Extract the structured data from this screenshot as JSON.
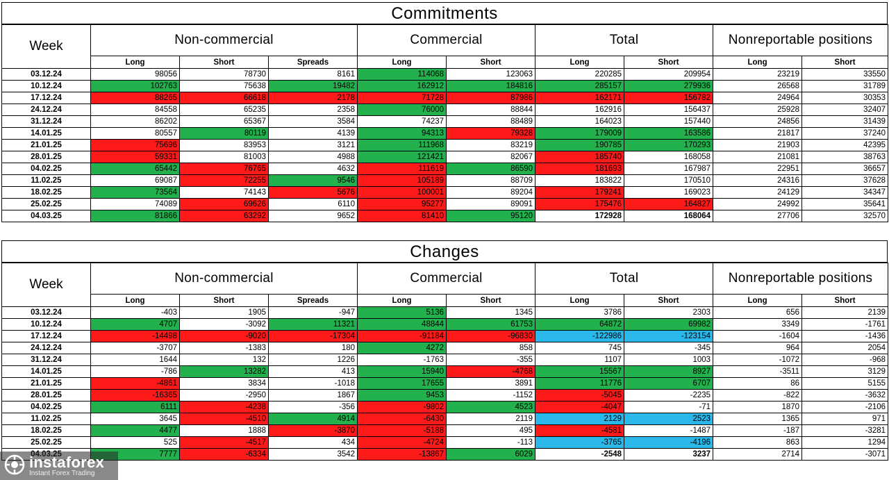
{
  "commitments": {
    "title": "Commitments",
    "week_label": "Week",
    "groups": [
      "Non-commercial",
      "Commercial",
      "Total",
      "Nonreportable positions"
    ],
    "subheaders": [
      "Long",
      "Short",
      "Spreads",
      "Long",
      "Short",
      "Long",
      "Short",
      "Long",
      "Short"
    ],
    "rows": [
      {
        "week": "03.12.24",
        "cells": [
          {
            "v": "98056",
            "c": ""
          },
          {
            "v": "78730",
            "c": ""
          },
          {
            "v": "8161",
            "c": ""
          },
          {
            "v": "114068",
            "c": "g"
          },
          {
            "v": "123063",
            "c": ""
          },
          {
            "v": "220285",
            "c": ""
          },
          {
            "v": "209954",
            "c": ""
          },
          {
            "v": "23219",
            "c": ""
          },
          {
            "v": "33550",
            "c": ""
          }
        ]
      },
      {
        "week": "10.12.24",
        "cells": [
          {
            "v": "102763",
            "c": "g"
          },
          {
            "v": "75638",
            "c": ""
          },
          {
            "v": "19482",
            "c": "g"
          },
          {
            "v": "162912",
            "c": "g"
          },
          {
            "v": "184816",
            "c": "g"
          },
          {
            "v": "285157",
            "c": "g"
          },
          {
            "v": "279936",
            "c": "g"
          },
          {
            "v": "26568",
            "c": ""
          },
          {
            "v": "31789",
            "c": ""
          }
        ]
      },
      {
        "week": "17.12.24",
        "cells": [
          {
            "v": "88265",
            "c": "r"
          },
          {
            "v": "66618",
            "c": "r"
          },
          {
            "v": "2178",
            "c": "r"
          },
          {
            "v": "71728",
            "c": "r"
          },
          {
            "v": "87986",
            "c": "r"
          },
          {
            "v": "162171",
            "c": "r"
          },
          {
            "v": "156782",
            "c": "r"
          },
          {
            "v": "24964",
            "c": ""
          },
          {
            "v": "30353",
            "c": ""
          }
        ]
      },
      {
        "week": "24.12.24",
        "cells": [
          {
            "v": "84558",
            "c": ""
          },
          {
            "v": "65235",
            "c": ""
          },
          {
            "v": "2358",
            "c": ""
          },
          {
            "v": "76000",
            "c": "g"
          },
          {
            "v": "88844",
            "c": ""
          },
          {
            "v": "162916",
            "c": ""
          },
          {
            "v": "156437",
            "c": ""
          },
          {
            "v": "25928",
            "c": ""
          },
          {
            "v": "32407",
            "c": ""
          }
        ]
      },
      {
        "week": "31.12.24",
        "cells": [
          {
            "v": "86202",
            "c": ""
          },
          {
            "v": "65367",
            "c": ""
          },
          {
            "v": "3584",
            "c": ""
          },
          {
            "v": "74237",
            "c": ""
          },
          {
            "v": "88489",
            "c": ""
          },
          {
            "v": "164023",
            "c": ""
          },
          {
            "v": "157440",
            "c": ""
          },
          {
            "v": "24856",
            "c": ""
          },
          {
            "v": "31439",
            "c": ""
          }
        ]
      },
      {
        "week": "14.01.25",
        "cells": [
          {
            "v": "80557",
            "c": ""
          },
          {
            "v": "80119",
            "c": "g"
          },
          {
            "v": "4139",
            "c": ""
          },
          {
            "v": "94313",
            "c": "g"
          },
          {
            "v": "79328",
            "c": "r"
          },
          {
            "v": "179009",
            "c": "g"
          },
          {
            "v": "163586",
            "c": "g"
          },
          {
            "v": "21817",
            "c": ""
          },
          {
            "v": "37240",
            "c": ""
          }
        ]
      },
      {
        "week": "21.01.25",
        "cells": [
          {
            "v": "75696",
            "c": "r"
          },
          {
            "v": "83953",
            "c": ""
          },
          {
            "v": "3121",
            "c": ""
          },
          {
            "v": "111968",
            "c": "g"
          },
          {
            "v": "83219",
            "c": ""
          },
          {
            "v": "190785",
            "c": "g"
          },
          {
            "v": "170293",
            "c": "g"
          },
          {
            "v": "21903",
            "c": ""
          },
          {
            "v": "42395",
            "c": ""
          }
        ]
      },
      {
        "week": "28.01.25",
        "cells": [
          {
            "v": "59331",
            "c": "r"
          },
          {
            "v": "81003",
            "c": ""
          },
          {
            "v": "4988",
            "c": ""
          },
          {
            "v": "121421",
            "c": "g"
          },
          {
            "v": "82067",
            "c": ""
          },
          {
            "v": "185740",
            "c": "r"
          },
          {
            "v": "168058",
            "c": ""
          },
          {
            "v": "21081",
            "c": ""
          },
          {
            "v": "38763",
            "c": ""
          }
        ]
      },
      {
        "week": "04.02.25",
        "cells": [
          {
            "v": "65442",
            "c": "g"
          },
          {
            "v": "76765",
            "c": "r"
          },
          {
            "v": "4632",
            "c": ""
          },
          {
            "v": "111619",
            "c": "r"
          },
          {
            "v": "86590",
            "c": "g"
          },
          {
            "v": "181693",
            "c": "r"
          },
          {
            "v": "167987",
            "c": ""
          },
          {
            "v": "22951",
            "c": ""
          },
          {
            "v": "36657",
            "c": ""
          }
        ]
      },
      {
        "week": "11.02.25",
        "cells": [
          {
            "v": "69087",
            "c": ""
          },
          {
            "v": "72255",
            "c": "r"
          },
          {
            "v": "9546",
            "c": "g"
          },
          {
            "v": "105189",
            "c": "r"
          },
          {
            "v": "88709",
            "c": ""
          },
          {
            "v": "183822",
            "c": ""
          },
          {
            "v": "170510",
            "c": ""
          },
          {
            "v": "24316",
            "c": ""
          },
          {
            "v": "37628",
            "c": ""
          }
        ]
      },
      {
        "week": "18.02.25",
        "cells": [
          {
            "v": "73564",
            "c": "g"
          },
          {
            "v": "74143",
            "c": ""
          },
          {
            "v": "5676",
            "c": "r"
          },
          {
            "v": "100001",
            "c": "r"
          },
          {
            "v": "89204",
            "c": ""
          },
          {
            "v": "179241",
            "c": "r"
          },
          {
            "v": "169023",
            "c": ""
          },
          {
            "v": "24129",
            "c": ""
          },
          {
            "v": "34347",
            "c": ""
          }
        ]
      },
      {
        "week": "25.02.25",
        "cells": [
          {
            "v": "74089",
            "c": ""
          },
          {
            "v": "69626",
            "c": "r"
          },
          {
            "v": "6110",
            "c": ""
          },
          {
            "v": "95277",
            "c": "r"
          },
          {
            "v": "89091",
            "c": ""
          },
          {
            "v": "175476",
            "c": "r"
          },
          {
            "v": "164827",
            "c": "r"
          },
          {
            "v": "24992",
            "c": ""
          },
          {
            "v": "35641",
            "c": ""
          }
        ]
      },
      {
        "week": "04.03.25",
        "cells": [
          {
            "v": "81866",
            "c": "g"
          },
          {
            "v": "63292",
            "c": "r"
          },
          {
            "v": "9652",
            "c": ""
          },
          {
            "v": "81410",
            "c": "r"
          },
          {
            "v": "95120",
            "c": "g"
          },
          {
            "v": "172928",
            "c": "",
            "b": true
          },
          {
            "v": "168064",
            "c": "",
            "b": true
          },
          {
            "v": "27706",
            "c": ""
          },
          {
            "v": "32570",
            "c": ""
          }
        ]
      }
    ]
  },
  "changes": {
    "title": "Changes",
    "week_label": "Week",
    "groups": [
      "Non-commercial",
      "Commercial",
      "Total",
      "Nonreportable positions"
    ],
    "subheaders": [
      "Long",
      "Short",
      "Spreads",
      "Long",
      "Short",
      "Long",
      "Short",
      "Long",
      "Short"
    ],
    "rows": [
      {
        "week": "03.12.24",
        "cells": [
          {
            "v": "-403",
            "c": ""
          },
          {
            "v": "1905",
            "c": ""
          },
          {
            "v": "-947",
            "c": ""
          },
          {
            "v": "5136",
            "c": "g"
          },
          {
            "v": "1345",
            "c": ""
          },
          {
            "v": "3786",
            "c": ""
          },
          {
            "v": "2303",
            "c": ""
          },
          {
            "v": "656",
            "c": ""
          },
          {
            "v": "2139",
            "c": ""
          }
        ]
      },
      {
        "week": "10.12.24",
        "cells": [
          {
            "v": "4707",
            "c": "g"
          },
          {
            "v": "-3092",
            "c": ""
          },
          {
            "v": "11321",
            "c": "g"
          },
          {
            "v": "48844",
            "c": "g"
          },
          {
            "v": "61753",
            "c": "g"
          },
          {
            "v": "64872",
            "c": "g"
          },
          {
            "v": "69982",
            "c": "g"
          },
          {
            "v": "3349",
            "c": ""
          },
          {
            "v": "-1761",
            "c": ""
          }
        ]
      },
      {
        "week": "17.12.24",
        "cells": [
          {
            "v": "-14498",
            "c": "r"
          },
          {
            "v": "-9020",
            "c": "r"
          },
          {
            "v": "-17304",
            "c": "r"
          },
          {
            "v": "-91184",
            "c": "r"
          },
          {
            "v": "-96830",
            "c": "r"
          },
          {
            "v": "-122986",
            "c": "b"
          },
          {
            "v": "-123154",
            "c": "b"
          },
          {
            "v": "-1604",
            "c": ""
          },
          {
            "v": "-1436",
            "c": ""
          }
        ]
      },
      {
        "week": "24.12.24",
        "cells": [
          {
            "v": "-3707",
            "c": ""
          },
          {
            "v": "-1383",
            "c": ""
          },
          {
            "v": "180",
            "c": ""
          },
          {
            "v": "4272",
            "c": "g"
          },
          {
            "v": "858",
            "c": ""
          },
          {
            "v": "745",
            "c": ""
          },
          {
            "v": "-345",
            "c": ""
          },
          {
            "v": "964",
            "c": ""
          },
          {
            "v": "2054",
            "c": ""
          }
        ]
      },
      {
        "week": "31.12.24",
        "cells": [
          {
            "v": "1644",
            "c": ""
          },
          {
            "v": "132",
            "c": ""
          },
          {
            "v": "1226",
            "c": ""
          },
          {
            "v": "-1763",
            "c": ""
          },
          {
            "v": "-355",
            "c": ""
          },
          {
            "v": "1107",
            "c": ""
          },
          {
            "v": "1003",
            "c": ""
          },
          {
            "v": "-1072",
            "c": ""
          },
          {
            "v": "-968",
            "c": ""
          }
        ]
      },
      {
        "week": "14.01.25",
        "cells": [
          {
            "v": "-786",
            "c": ""
          },
          {
            "v": "13282",
            "c": "g"
          },
          {
            "v": "413",
            "c": ""
          },
          {
            "v": "15940",
            "c": "g"
          },
          {
            "v": "-4768",
            "c": "r"
          },
          {
            "v": "15567",
            "c": "g"
          },
          {
            "v": "8927",
            "c": "g"
          },
          {
            "v": "-3511",
            "c": ""
          },
          {
            "v": "3129",
            "c": ""
          }
        ]
      },
      {
        "week": "21.01.25",
        "cells": [
          {
            "v": "-4861",
            "c": "r"
          },
          {
            "v": "3834",
            "c": ""
          },
          {
            "v": "-1018",
            "c": ""
          },
          {
            "v": "17655",
            "c": "g"
          },
          {
            "v": "3891",
            "c": ""
          },
          {
            "v": "11776",
            "c": "g"
          },
          {
            "v": "6707",
            "c": "g"
          },
          {
            "v": "86",
            "c": ""
          },
          {
            "v": "5155",
            "c": ""
          }
        ]
      },
      {
        "week": "28.01.25",
        "cells": [
          {
            "v": "-16365",
            "c": "r"
          },
          {
            "v": "-2950",
            "c": ""
          },
          {
            "v": "1867",
            "c": ""
          },
          {
            "v": "9453",
            "c": "g"
          },
          {
            "v": "-1152",
            "c": ""
          },
          {
            "v": "-5045",
            "c": "r"
          },
          {
            "v": "-2235",
            "c": ""
          },
          {
            "v": "-822",
            "c": ""
          },
          {
            "v": "-3632",
            "c": ""
          }
        ]
      },
      {
        "week": "04.02.25",
        "cells": [
          {
            "v": "6111",
            "c": "g"
          },
          {
            "v": "-4238",
            "c": "r"
          },
          {
            "v": "-356",
            "c": ""
          },
          {
            "v": "-9802",
            "c": "r"
          },
          {
            "v": "4523",
            "c": "g"
          },
          {
            "v": "-4047",
            "c": "r"
          },
          {
            "v": "-71",
            "c": ""
          },
          {
            "v": "1870",
            "c": ""
          },
          {
            "v": "-2106",
            "c": ""
          }
        ]
      },
      {
        "week": "11.02.25",
        "cells": [
          {
            "v": "3645",
            "c": ""
          },
          {
            "v": "-4510",
            "c": "r"
          },
          {
            "v": "4914",
            "c": "g"
          },
          {
            "v": "-6430",
            "c": "r"
          },
          {
            "v": "2119",
            "c": ""
          },
          {
            "v": "2129",
            "c": "b"
          },
          {
            "v": "2523",
            "c": "b"
          },
          {
            "v": "1365",
            "c": ""
          },
          {
            "v": "971",
            "c": ""
          }
        ]
      },
      {
        "week": "18.02.25",
        "cells": [
          {
            "v": "4477",
            "c": "g"
          },
          {
            "v": "1888",
            "c": ""
          },
          {
            "v": "-3870",
            "c": "r"
          },
          {
            "v": "-5188",
            "c": "r"
          },
          {
            "v": "495",
            "c": ""
          },
          {
            "v": "-4581",
            "c": "r"
          },
          {
            "v": "-1487",
            "c": ""
          },
          {
            "v": "-187",
            "c": ""
          },
          {
            "v": "-3281",
            "c": ""
          }
        ]
      },
      {
        "week": "25.02.25",
        "cells": [
          {
            "v": "525",
            "c": ""
          },
          {
            "v": "-4517",
            "c": "r"
          },
          {
            "v": "434",
            "c": ""
          },
          {
            "v": "-4724",
            "c": "r"
          },
          {
            "v": "-113",
            "c": ""
          },
          {
            "v": "-3765",
            "c": "b"
          },
          {
            "v": "-4196",
            "c": "b"
          },
          {
            "v": "863",
            "c": ""
          },
          {
            "v": "1294",
            "c": ""
          }
        ]
      },
      {
        "week": "04.03.25",
        "cells": [
          {
            "v": "7777",
            "c": "g"
          },
          {
            "v": "-6334",
            "c": "r"
          },
          {
            "v": "3542",
            "c": ""
          },
          {
            "v": "-13867",
            "c": "r"
          },
          {
            "v": "6029",
            "c": "g"
          },
          {
            "v": "-2548",
            "c": "",
            "b": true
          },
          {
            "v": "3237",
            "c": "",
            "b": true
          },
          {
            "v": "2714",
            "c": ""
          },
          {
            "v": "-3071",
            "c": ""
          }
        ]
      }
    ]
  },
  "watermark": {
    "brand": "instaforex",
    "tagline": "Instant Forex Trading"
  },
  "colors": {
    "green": "#22b14c",
    "red": "#ff1a1a",
    "blue": "#2ab7ea"
  }
}
